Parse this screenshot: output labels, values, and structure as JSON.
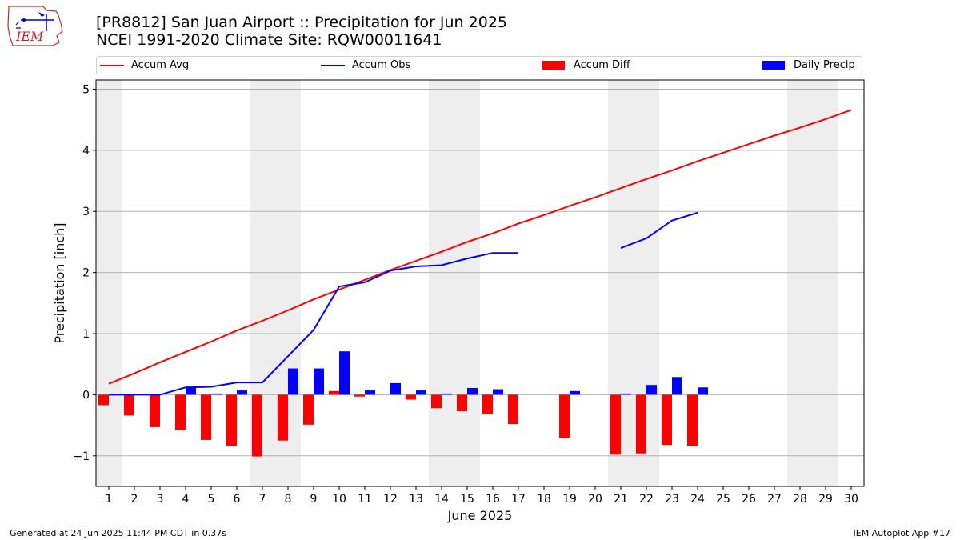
{
  "header": {
    "title_line1": "[PR8812] San Juan Airport :: Precipitation for Jun 2025",
    "title_line2": "NCEI 1991-2020 Climate Site: RQW00011641",
    "logo_text": "IEM"
  },
  "legend": {
    "items": [
      {
        "label": "Accum Avg",
        "kind": "line",
        "color": "#ff0000"
      },
      {
        "label": "Accum Obs",
        "kind": "line",
        "color": "#0000ff"
      },
      {
        "label": "Accum Diff",
        "kind": "box",
        "color": "#ff0000"
      },
      {
        "label": "Daily Precip",
        "kind": "box",
        "color": "#0000ff"
      }
    ]
  },
  "footer": {
    "left": "Generated at 24 Jun 2025 11:44 PM CDT in 0.37s",
    "right": "IEM Autoplot App #17"
  },
  "chart_data": {
    "type": "bar",
    "xlabel": "June 2025",
    "ylabel": "Precipitation [inch]",
    "xlim": [
      0.5,
      30.5
    ],
    "ylim": [
      -1.5,
      5.15
    ],
    "yticks": [
      -1,
      0,
      1,
      2,
      3,
      4,
      5
    ],
    "xticks": [
      1,
      2,
      3,
      4,
      5,
      6,
      7,
      8,
      9,
      10,
      11,
      12,
      13,
      14,
      15,
      16,
      17,
      18,
      19,
      20,
      21,
      22,
      23,
      24,
      25,
      26,
      27,
      28,
      29,
      30
    ],
    "grid": "horizontal",
    "legend_position": "top",
    "weekend_shading_days": [
      [
        1,
        1
      ],
      [
        7,
        8
      ],
      [
        14,
        15
      ],
      [
        21,
        22
      ],
      [
        28,
        29
      ]
    ],
    "colors": {
      "avg": "#ff0000",
      "obs": "#0000ff",
      "diff": "#ff0000",
      "daily": "#0000ff",
      "shade": "#eeeeee",
      "grid": "#b0b0b0"
    },
    "series": [
      {
        "name": "Accum Avg",
        "type": "line",
        "x": [
          1,
          2,
          3,
          4,
          5,
          6,
          7,
          8,
          9,
          10,
          11,
          12,
          13,
          14,
          15,
          16,
          17,
          18,
          19,
          20,
          21,
          22,
          23,
          24,
          25,
          26,
          27,
          28,
          29,
          30
        ],
        "values": [
          0.18,
          0.35,
          0.53,
          0.7,
          0.87,
          1.05,
          1.21,
          1.38,
          1.56,
          1.72,
          1.88,
          2.04,
          2.19,
          2.34,
          2.5,
          2.64,
          2.8,
          2.94,
          3.09,
          3.23,
          3.38,
          3.53,
          3.67,
          3.82,
          3.96,
          4.1,
          4.24,
          4.37,
          4.51,
          4.66
        ]
      },
      {
        "name": "Accum Obs",
        "type": "line",
        "x": [
          1,
          2,
          3,
          4,
          5,
          6,
          7,
          8,
          9,
          10,
          11,
          12,
          13,
          14,
          15,
          16,
          17,
          18,
          19,
          20,
          21,
          22,
          23,
          24
        ],
        "values": [
          0.0,
          0.0,
          0.0,
          0.12,
          0.13,
          0.2,
          0.2,
          0.63,
          1.06,
          1.77,
          1.84,
          2.03,
          2.1,
          2.12,
          2.23,
          2.32,
          2.32,
          null,
          null,
          null,
          2.4,
          2.56,
          2.85,
          2.98
        ]
      },
      {
        "name": "Accum Diff",
        "type": "bar",
        "x": [
          1,
          2,
          3,
          4,
          5,
          6,
          7,
          8,
          9,
          10,
          11,
          12,
          13,
          14,
          15,
          16,
          17,
          19,
          21,
          22,
          23,
          24
        ],
        "values": [
          -0.17,
          -0.34,
          -0.53,
          -0.58,
          -0.74,
          -0.84,
          -1.01,
          -0.75,
          -0.49,
          0.06,
          -0.03,
          0.0,
          -0.08,
          -0.22,
          -0.27,
          -0.32,
          -0.48,
          -0.71,
          -0.98,
          -0.96,
          -0.82,
          -0.84
        ]
      },
      {
        "name": "Daily Precip",
        "type": "bar",
        "x": [
          4,
          5,
          6,
          8,
          9,
          10,
          11,
          12,
          13,
          14,
          15,
          16,
          19,
          21,
          22,
          23,
          24
        ],
        "values": [
          0.12,
          0.02,
          0.07,
          0.43,
          0.43,
          0.71,
          0.07,
          0.19,
          0.07,
          0.02,
          0.11,
          0.09,
          0.06,
          0.02,
          0.16,
          0.29,
          0.12
        ]
      }
    ]
  }
}
